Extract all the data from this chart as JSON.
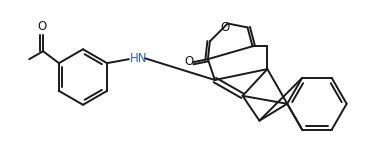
{
  "bg_color": "#ffffff",
  "line_color": "#1a1a1a",
  "nh_color": "#3060c0",
  "o_color": "#1a1a1a",
  "line_width": 1.4,
  "figsize": [
    3.91,
    1.59
  ],
  "dpi": 100,
  "xlim": [
    0,
    391
  ],
  "ylim": [
    0,
    159
  ]
}
